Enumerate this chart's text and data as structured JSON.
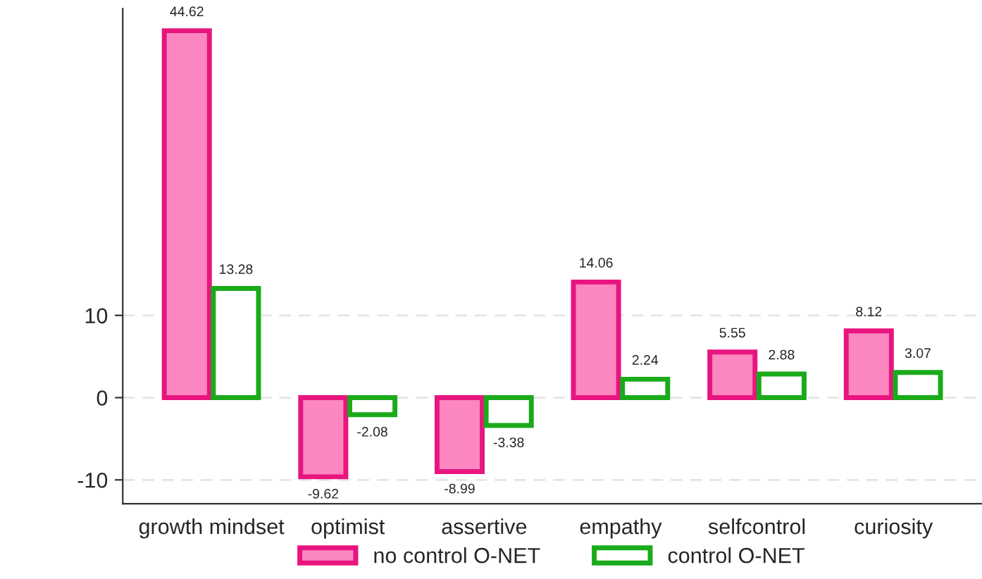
{
  "chart_data": {
    "type": "bar",
    "categories": [
      "growth mindset",
      "optimist",
      "assertive",
      "empathy",
      "selfcontrol",
      "curiosity"
    ],
    "series": [
      {
        "name": "no control O-NET",
        "color": "#e8157f",
        "values": [
          44.62,
          -9.62,
          -8.99,
          14.06,
          5.55,
          8.12
        ]
      },
      {
        "name": "control O-NET",
        "color": "#1aaa1a",
        "values": [
          13.28,
          -2.08,
          -3.38,
          2.24,
          2.88,
          3.07
        ]
      }
    ],
    "ylim": [
      -12.9,
      47.3
    ],
    "yticks": [
      -10,
      0,
      10
    ],
    "grid": "y",
    "legend": "bottom",
    "data_labels": true
  }
}
